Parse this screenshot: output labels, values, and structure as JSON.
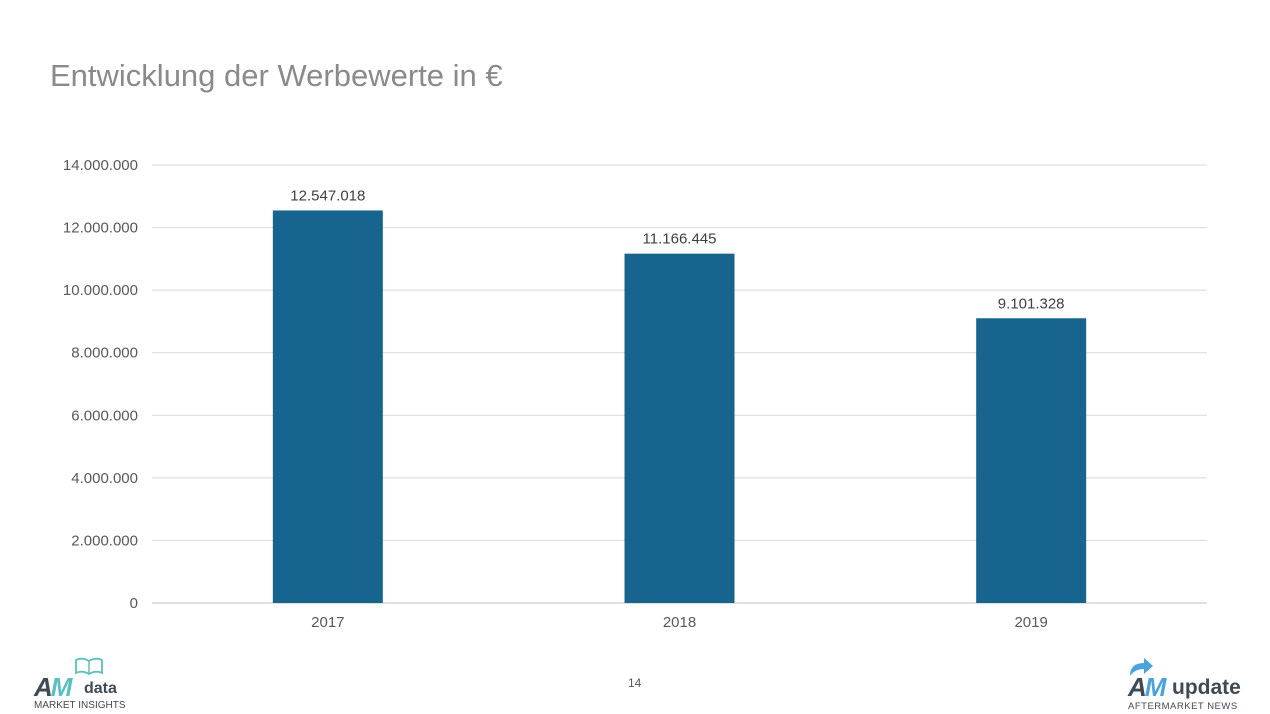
{
  "slide": {
    "title": "Entwicklung der Werbewerte in €",
    "page_number": "14"
  },
  "chart_data": {
    "type": "bar",
    "title": "",
    "xlabel": "",
    "ylabel": "",
    "categories": [
      "2017",
      "2018",
      "2019"
    ],
    "values": [
      12547018,
      11166445,
      9101328
    ],
    "data_labels": [
      "12.547.018",
      "11.166.445",
      "9.101.328"
    ],
    "ylim": [
      0,
      14000000
    ],
    "y_ticks": [
      0,
      2000000,
      4000000,
      6000000,
      8000000,
      10000000,
      12000000,
      14000000
    ],
    "y_tick_labels": [
      "0",
      "2.000.000",
      "4.000.000",
      "6.000.000",
      "8.000.000",
      "10.000.000",
      "12.000.000",
      "14.000.000"
    ],
    "grid": true,
    "legend": "none",
    "colors": {
      "bar": "#17648f",
      "grid": "#d9d9d9",
      "tick_text": "#595959",
      "label_text": "#404040"
    }
  },
  "logos": {
    "left": {
      "mark_a": "A",
      "mark_m": "M",
      "word": "data",
      "tagline": "MARKET INSIGHTS",
      "icon": "open-book-icon"
    },
    "right": {
      "mark_a": "A",
      "mark_m": "M",
      "word": "update",
      "tagline": "AFTERMARKET NEWS",
      "icon": "curved-arrow-icon"
    }
  }
}
